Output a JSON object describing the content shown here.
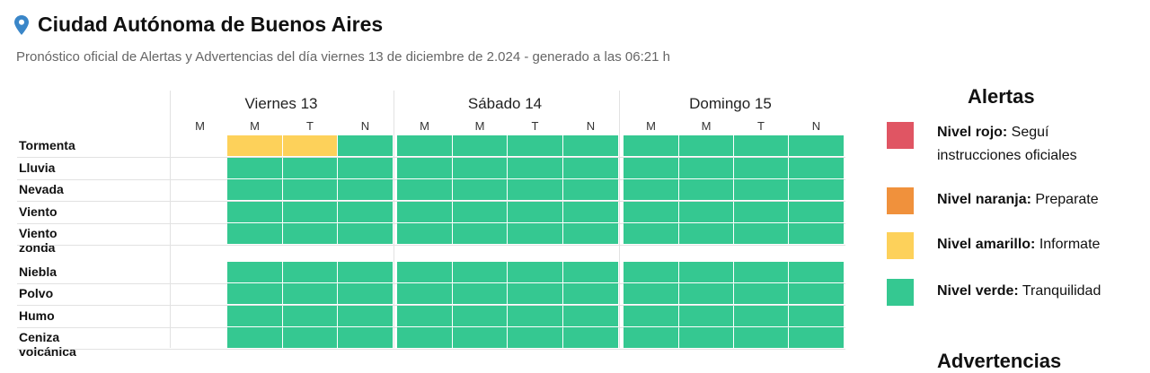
{
  "header": {
    "title": "Ciudad Autónoma de Buenos Aires",
    "subtitle": "Pronóstico oficial de Alertas y Advertencias del día viernes 13 de diciembre de 2.024 - generado a las 06:21 h"
  },
  "days": [
    {
      "label": "Viernes 13",
      "periods": [
        "M",
        "M",
        "T",
        "N"
      ]
    },
    {
      "label": "Sábado 14",
      "periods": [
        "M",
        "M",
        "T",
        "N"
      ]
    },
    {
      "label": "Domingo 15",
      "periods": [
        "M",
        "M",
        "T",
        "N"
      ]
    }
  ],
  "colors": {
    "rojo": "#e05563",
    "naranja": "#f0913c",
    "amarillo": "#fdd15a",
    "verde": "#35c891",
    "pin": "#3a86c8"
  },
  "rows": [
    {
      "label": "Tormenta",
      "levels": [
        "none",
        "amarillo",
        "amarillo",
        "verde",
        "verde",
        "verde",
        "verde",
        "verde",
        "verde",
        "verde",
        "verde",
        "verde"
      ]
    },
    {
      "label": "Lluvia",
      "levels": [
        "none",
        "verde",
        "verde",
        "verde",
        "verde",
        "verde",
        "verde",
        "verde",
        "verde",
        "verde",
        "verde",
        "verde"
      ]
    },
    {
      "label": "Nevada",
      "levels": [
        "none",
        "verde",
        "verde",
        "verde",
        "verde",
        "verde",
        "verde",
        "verde",
        "verde",
        "verde",
        "verde",
        "verde"
      ]
    },
    {
      "label": "Viento",
      "levels": [
        "none",
        "verde",
        "verde",
        "verde",
        "verde",
        "verde",
        "verde",
        "verde",
        "verde",
        "verde",
        "verde",
        "verde"
      ]
    },
    {
      "label": "Viento zonda",
      "levels": [
        "none",
        "verde",
        "verde",
        "verde",
        "verde",
        "verde",
        "verde",
        "verde",
        "verde",
        "verde",
        "verde",
        "verde"
      ]
    },
    {
      "label": "Niebla",
      "levels": [
        "none",
        "verde",
        "verde",
        "verde",
        "verde",
        "verde",
        "verde",
        "verde",
        "verde",
        "verde",
        "verde",
        "verde"
      ]
    },
    {
      "label": "Polvo",
      "levels": [
        "none",
        "verde",
        "verde",
        "verde",
        "verde",
        "verde",
        "verde",
        "verde",
        "verde",
        "verde",
        "verde",
        "verde"
      ]
    },
    {
      "label": "Humo",
      "levels": [
        "none",
        "verde",
        "verde",
        "verde",
        "verde",
        "verde",
        "verde",
        "verde",
        "verde",
        "verde",
        "verde",
        "verde"
      ]
    },
    {
      "label": "Ceniza volcánica",
      "levels": [
        "none",
        "verde",
        "verde",
        "verde",
        "verde",
        "verde",
        "verde",
        "verde",
        "verde",
        "verde",
        "verde",
        "verde"
      ]
    }
  ],
  "legend": {
    "title": "Alertas",
    "items": [
      {
        "level": "rojo",
        "name": "Nivel rojo:",
        "desc": "Seguí instrucciones oficiales"
      },
      {
        "level": "naranja",
        "name": "Nivel naranja:",
        "desc": "Preparate"
      },
      {
        "level": "amarillo",
        "name": "Nivel amarillo:",
        "desc": "Informate"
      },
      {
        "level": "verde",
        "name": "Nivel verde:",
        "desc": "Tranquilidad"
      }
    ],
    "advertencias_title": "Advertencias"
  }
}
